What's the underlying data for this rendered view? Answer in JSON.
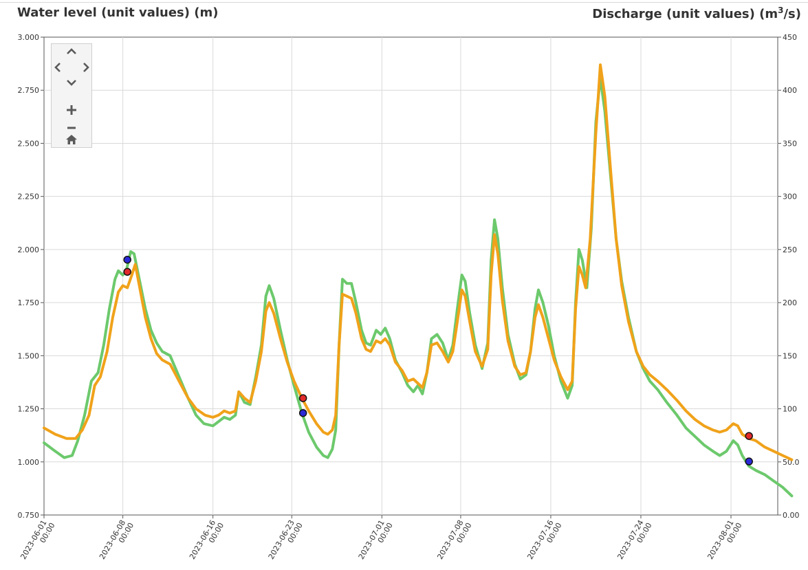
{
  "left_axis_title": "Water level (unit values) (m)",
  "right_axis_title_main": "Discharge (unit values) (m",
  "right_axis_title_sup": "3",
  "right_axis_title_end": "/s)",
  "nav": {
    "pan_up_icon": "chevron-up-icon",
    "pan_left_icon": "chevron-left-icon",
    "pan_right_icon": "chevron-right-icon",
    "pan_down_icon": "chevron-down-icon",
    "zoom_in_icon": "plus-icon",
    "zoom_out_icon": "minus-icon",
    "home_icon": "home-icon"
  },
  "chart_data": {
    "type": "line",
    "x_tick_labels": [
      [
        "2023-06-01",
        "00:00"
      ],
      [
        "2023-06-08",
        "00:00"
      ],
      [
        "2023-06-16",
        "00:00"
      ],
      [
        "2023-06-23",
        "00:00"
      ],
      [
        "2023-07-01",
        "00:00"
      ],
      [
        "2023-07-08",
        "00:00"
      ],
      [
        "2023-07-16",
        "00:00"
      ],
      [
        "2023-07-24",
        "00:00"
      ],
      [
        "2023-08-01",
        "00:00"
      ]
    ],
    "x_tick_days": [
      0,
      7,
      15,
      22,
      30,
      37,
      45,
      53,
      61
    ],
    "xlim_days": [
      0,
      64
    ],
    "y_left": {
      "label": "Water level (unit values) (m)",
      "ylim": [
        0.75,
        3.0
      ],
      "ticks": [
        "0.750",
        "1.000",
        "1.250",
        "1.500",
        "1.750",
        "2.000",
        "2.250",
        "2.500",
        "2.750",
        "3.000"
      ]
    },
    "y_right": {
      "label": "Discharge (unit values) (m³/s)",
      "ylim": [
        0,
        450
      ],
      "ticks": [
        "0.00",
        "50.0",
        "100",
        "150",
        "200",
        "250",
        "300",
        "350",
        "400",
        "450"
      ]
    },
    "grid": true,
    "series": [
      {
        "color": "#6cc96c",
        "axis": "left",
        "points": [
          [
            0,
            1.09
          ],
          [
            1,
            1.05
          ],
          [
            1.8,
            1.02
          ],
          [
            2.5,
            1.03
          ],
          [
            3,
            1.1
          ],
          [
            3.6,
            1.22
          ],
          [
            4.2,
            1.38
          ],
          [
            4.8,
            1.42
          ],
          [
            5.3,
            1.55
          ],
          [
            5.8,
            1.72
          ],
          [
            6.3,
            1.86
          ],
          [
            6.6,
            1.9
          ],
          [
            7.0,
            1.88
          ],
          [
            7.3,
            1.9
          ],
          [
            7.7,
            1.99
          ],
          [
            8.0,
            1.98
          ],
          [
            8.5,
            1.85
          ],
          [
            9.0,
            1.72
          ],
          [
            9.5,
            1.62
          ],
          [
            10.0,
            1.56
          ],
          [
            10.5,
            1.52
          ],
          [
            11.2,
            1.5
          ],
          [
            12.0,
            1.4
          ],
          [
            12.8,
            1.3
          ],
          [
            13.5,
            1.22
          ],
          [
            14.2,
            1.18
          ],
          [
            15.0,
            1.17
          ],
          [
            15.5,
            1.19
          ],
          [
            16.0,
            1.21
          ],
          [
            16.5,
            1.2
          ],
          [
            17.0,
            1.22
          ],
          [
            17.3,
            1.33
          ],
          [
            17.8,
            1.28
          ],
          [
            18.3,
            1.27
          ],
          [
            18.8,
            1.4
          ],
          [
            19.3,
            1.55
          ],
          [
            19.7,
            1.78
          ],
          [
            20.0,
            1.83
          ],
          [
            20.4,
            1.77
          ],
          [
            21.0,
            1.62
          ],
          [
            21.6,
            1.48
          ],
          [
            22.2,
            1.36
          ],
          [
            22.9,
            1.23
          ],
          [
            23.5,
            1.14
          ],
          [
            24.2,
            1.07
          ],
          [
            24.8,
            1.03
          ],
          [
            25.2,
            1.02
          ],
          [
            25.6,
            1.06
          ],
          [
            25.9,
            1.15
          ],
          [
            26.2,
            1.55
          ],
          [
            26.5,
            1.86
          ],
          [
            26.9,
            1.84
          ],
          [
            27.3,
            1.84
          ],
          [
            27.7,
            1.75
          ],
          [
            28.2,
            1.62
          ],
          [
            28.6,
            1.56
          ],
          [
            29.0,
            1.55
          ],
          [
            29.5,
            1.62
          ],
          [
            29.9,
            1.6
          ],
          [
            30.3,
            1.63
          ],
          [
            30.7,
            1.58
          ],
          [
            31.2,
            1.48
          ],
          [
            31.8,
            1.42
          ],
          [
            32.3,
            1.36
          ],
          [
            32.8,
            1.33
          ],
          [
            33.2,
            1.36
          ],
          [
            33.6,
            1.32
          ],
          [
            34.0,
            1.42
          ],
          [
            34.4,
            1.58
          ],
          [
            34.9,
            1.6
          ],
          [
            35.4,
            1.56
          ],
          [
            35.9,
            1.48
          ],
          [
            36.3,
            1.55
          ],
          [
            36.7,
            1.72
          ],
          [
            37.1,
            1.88
          ],
          [
            37.4,
            1.85
          ],
          [
            37.8,
            1.7
          ],
          [
            38.3,
            1.55
          ],
          [
            38.9,
            1.44
          ],
          [
            39.4,
            1.56
          ],
          [
            39.7,
            1.95
          ],
          [
            40.0,
            2.14
          ],
          [
            40.3,
            2.05
          ],
          [
            40.7,
            1.82
          ],
          [
            41.2,
            1.6
          ],
          [
            41.8,
            1.46
          ],
          [
            42.3,
            1.39
          ],
          [
            42.8,
            1.41
          ],
          [
            43.2,
            1.52
          ],
          [
            43.6,
            1.72
          ],
          [
            43.9,
            1.81
          ],
          [
            44.3,
            1.75
          ],
          [
            44.8,
            1.64
          ],
          [
            45.3,
            1.5
          ],
          [
            45.9,
            1.38
          ],
          [
            46.5,
            1.3
          ],
          [
            46.9,
            1.36
          ],
          [
            47.2,
            1.75
          ],
          [
            47.5,
            2.0
          ],
          [
            47.8,
            1.95
          ],
          [
            48.2,
            1.82
          ],
          [
            48.6,
            2.1
          ],
          [
            49.0,
            2.6
          ],
          [
            49.4,
            2.81
          ],
          [
            49.8,
            2.65
          ],
          [
            50.3,
            2.35
          ],
          [
            50.8,
            2.05
          ],
          [
            51.3,
            1.85
          ],
          [
            51.9,
            1.68
          ],
          [
            52.6,
            1.52
          ],
          [
            53.2,
            1.44
          ],
          [
            53.8,
            1.38
          ],
          [
            54.5,
            1.34
          ],
          [
            55.3,
            1.28
          ],
          [
            56.2,
            1.22
          ],
          [
            57.0,
            1.16
          ],
          [
            57.8,
            1.12
          ],
          [
            58.6,
            1.08
          ],
          [
            59.4,
            1.05
          ],
          [
            60.0,
            1.03
          ],
          [
            60.6,
            1.05
          ],
          [
            61.2,
            1.1
          ],
          [
            61.6,
            1.08
          ],
          [
            62.0,
            1.03
          ],
          [
            62.6,
            0.98
          ],
          [
            63.2,
            0.96
          ],
          [
            64.0,
            0.94
          ],
          [
            64.8,
            0.91
          ],
          [
            65.6,
            0.88
          ],
          [
            66.4,
            0.84
          ]
        ]
      },
      {
        "color": "#f0a21a",
        "axis": "left",
        "points": [
          [
            0,
            1.16
          ],
          [
            1,
            1.13
          ],
          [
            2,
            1.11
          ],
          [
            2.8,
            1.11
          ],
          [
            3.4,
            1.15
          ],
          [
            4.0,
            1.22
          ],
          [
            4.5,
            1.36
          ],
          [
            5.0,
            1.4
          ],
          [
            5.6,
            1.52
          ],
          [
            6.1,
            1.68
          ],
          [
            6.6,
            1.8
          ],
          [
            7.0,
            1.83
          ],
          [
            7.4,
            1.82
          ],
          [
            7.8,
            1.88
          ],
          [
            8.1,
            1.93
          ],
          [
            8.5,
            1.82
          ],
          [
            9.0,
            1.68
          ],
          [
            9.5,
            1.58
          ],
          [
            10.0,
            1.51
          ],
          [
            10.5,
            1.48
          ],
          [
            11.2,
            1.46
          ],
          [
            12.0,
            1.38
          ],
          [
            12.8,
            1.3
          ],
          [
            13.5,
            1.25
          ],
          [
            14.3,
            1.22
          ],
          [
            15.0,
            1.21
          ],
          [
            15.5,
            1.22
          ],
          [
            16.0,
            1.24
          ],
          [
            16.5,
            1.23
          ],
          [
            17.0,
            1.24
          ],
          [
            17.3,
            1.33
          ],
          [
            17.8,
            1.3
          ],
          [
            18.3,
            1.28
          ],
          [
            18.8,
            1.38
          ],
          [
            19.3,
            1.52
          ],
          [
            19.7,
            1.71
          ],
          [
            20.0,
            1.75
          ],
          [
            20.4,
            1.7
          ],
          [
            21.0,
            1.58
          ],
          [
            21.6,
            1.47
          ],
          [
            22.2,
            1.38
          ],
          [
            22.9,
            1.3
          ],
          [
            23.5,
            1.24
          ],
          [
            24.2,
            1.18
          ],
          [
            24.8,
            1.14
          ],
          [
            25.2,
            1.13
          ],
          [
            25.6,
            1.15
          ],
          [
            25.9,
            1.22
          ],
          [
            26.2,
            1.55
          ],
          [
            26.5,
            1.79
          ],
          [
            26.9,
            1.78
          ],
          [
            27.3,
            1.77
          ],
          [
            27.7,
            1.7
          ],
          [
            28.2,
            1.58
          ],
          [
            28.6,
            1.53
          ],
          [
            29.0,
            1.52
          ],
          [
            29.5,
            1.57
          ],
          [
            29.9,
            1.56
          ],
          [
            30.3,
            1.58
          ],
          [
            30.7,
            1.55
          ],
          [
            31.2,
            1.47
          ],
          [
            31.8,
            1.43
          ],
          [
            32.3,
            1.38
          ],
          [
            32.8,
            1.39
          ],
          [
            33.2,
            1.37
          ],
          [
            33.6,
            1.35
          ],
          [
            34.0,
            1.42
          ],
          [
            34.4,
            1.55
          ],
          [
            34.9,
            1.56
          ],
          [
            35.4,
            1.52
          ],
          [
            35.9,
            1.47
          ],
          [
            36.3,
            1.52
          ],
          [
            36.7,
            1.66
          ],
          [
            37.1,
            1.81
          ],
          [
            37.4,
            1.78
          ],
          [
            37.8,
            1.66
          ],
          [
            38.3,
            1.52
          ],
          [
            38.9,
            1.45
          ],
          [
            39.4,
            1.53
          ],
          [
            39.7,
            1.88
          ],
          [
            40.0,
            2.07
          ],
          [
            40.3,
            1.98
          ],
          [
            40.7,
            1.76
          ],
          [
            41.2,
            1.57
          ],
          [
            41.8,
            1.45
          ],
          [
            42.3,
            1.41
          ],
          [
            42.8,
            1.42
          ],
          [
            43.2,
            1.52
          ],
          [
            43.6,
            1.68
          ],
          [
            43.9,
            1.74
          ],
          [
            44.3,
            1.68
          ],
          [
            44.8,
            1.58
          ],
          [
            45.3,
            1.48
          ],
          [
            45.9,
            1.4
          ],
          [
            46.5,
            1.34
          ],
          [
            46.9,
            1.38
          ],
          [
            47.2,
            1.72
          ],
          [
            47.5,
            1.92
          ],
          [
            47.8,
            1.88
          ],
          [
            48.1,
            1.82
          ],
          [
            48.5,
            2.05
          ],
          [
            49.0,
            2.55
          ],
          [
            49.4,
            2.87
          ],
          [
            49.8,
            2.72
          ],
          [
            50.3,
            2.38
          ],
          [
            50.8,
            2.05
          ],
          [
            51.3,
            1.83
          ],
          [
            51.9,
            1.66
          ],
          [
            52.6,
            1.52
          ],
          [
            53.2,
            1.45
          ],
          [
            53.8,
            1.41
          ],
          [
            54.5,
            1.38
          ],
          [
            55.3,
            1.34
          ],
          [
            56.2,
            1.29
          ],
          [
            57.0,
            1.24
          ],
          [
            57.8,
            1.2
          ],
          [
            58.6,
            1.17
          ],
          [
            59.4,
            1.15
          ],
          [
            60.0,
            1.14
          ],
          [
            60.6,
            1.15
          ],
          [
            61.2,
            1.18
          ],
          [
            61.6,
            1.17
          ],
          [
            62.0,
            1.13
          ],
          [
            62.6,
            1.11
          ],
          [
            63.2,
            1.1
          ],
          [
            64.0,
            1.07
          ],
          [
            64.8,
            1.05
          ],
          [
            65.6,
            1.03
          ],
          [
            66.4,
            1.01
          ]
        ]
      }
    ],
    "markers": [
      {
        "x": 7.4,
        "y": 1.952,
        "color": "#2a2ad8"
      },
      {
        "x": 7.4,
        "y": 1.895,
        "color": "#e22a2a"
      },
      {
        "x": 23.0,
        "y": 1.3,
        "color": "#e22a2a"
      },
      {
        "x": 23.0,
        "y": 1.23,
        "color": "#2a2ad8"
      },
      {
        "x": 62.6,
        "y": 1.122,
        "color": "#e22a2a"
      },
      {
        "x": 62.6,
        "y": 1.002,
        "color": "#2a2ad8"
      }
    ]
  }
}
